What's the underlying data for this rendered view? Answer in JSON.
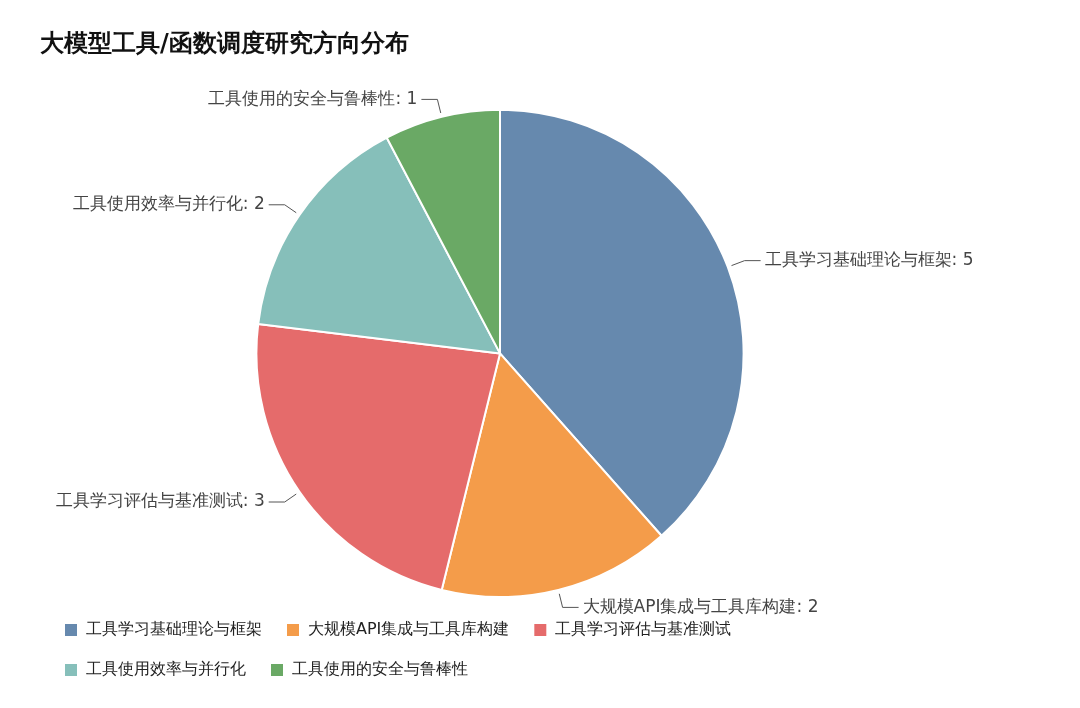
{
  "chart_data": {
    "type": "pie",
    "title": "大模型工具/函数调度研究方向分布",
    "categories": [
      "工具学习基础理论与框架",
      "大规模API集成与工具库构建",
      "工具学习评估与基准测试",
      "工具使用效率与并行化",
      "工具使用的安全与鲁棒性"
    ],
    "values": [
      5,
      2,
      3,
      2,
      1
    ],
    "colors": [
      "#6689ae",
      "#f49c4a",
      "#e56b6b",
      "#86bfba",
      "#6aa965"
    ],
    "value_labels": [
      ": 5",
      ": 2",
      ": 3",
      ": 2",
      ": 1"
    ],
    "legend": "bottom"
  }
}
